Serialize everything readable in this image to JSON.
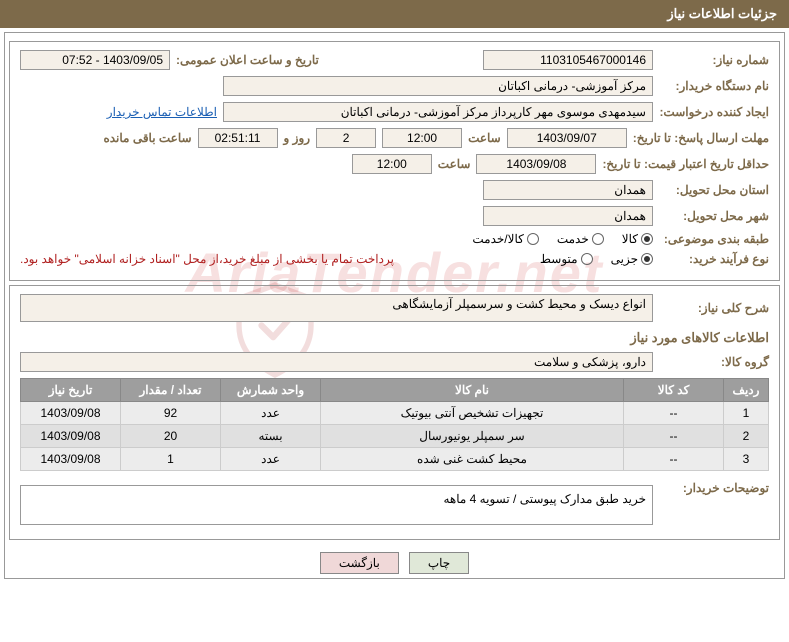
{
  "header": {
    "title": "جزئیات اطلاعات نیاز"
  },
  "form": {
    "need_number_label": "شماره نیاز:",
    "need_number": "1103105467000146",
    "announce_label": "تاریخ و ساعت اعلان عمومی:",
    "announce_value": "1403/09/05 - 07:52",
    "buyer_org_label": "نام دستگاه خریدار:",
    "buyer_org": "مرکز آموزشی- درمانی اکباتان",
    "requester_label": "ایجاد کننده درخواست:",
    "requester": "سیدمهدی موسوی مهر کارپرداز مرکز آموزشی- درمانی اکباتان",
    "contact_link": "اطلاعات تماس خریدار",
    "deadline_response_label": "مهلت ارسال پاسخ: تا تاریخ:",
    "deadline_date": "1403/09/07",
    "time_label": "ساعت",
    "deadline_time": "12:00",
    "days_remaining": "2",
    "days_label": "روز و",
    "time_remaining": "02:51:11",
    "remaining_label": "ساعت باقی مانده",
    "price_validity_label": "حداقل تاریخ اعتبار قیمت: تا تاریخ:",
    "price_validity_date": "1403/09/08",
    "price_validity_time": "12:00",
    "province_label": "استان محل تحویل:",
    "province": "همدان",
    "city_label": "شهر محل تحویل:",
    "city": "همدان",
    "subject_class_label": "طبقه بندی موضوعی:",
    "radio_goods": "کالا",
    "radio_service": "خدمت",
    "radio_goods_service": "کالا/خدمت",
    "purchase_type_label": "نوع فرآیند خرید:",
    "radio_partial": "جزیی",
    "radio_medium": "متوسط",
    "payment_note": "پرداخت تمام یا بخشی از مبلغ خرید،از محل \"اسناد خزانه اسلامی\" خواهد بود.",
    "need_desc_label": "شرح کلی نیاز:",
    "need_desc": "انواع دیسک و محیط کشت و سرسمپلر آزمایشگاهی",
    "goods_info_title": "اطلاعات کالاهای مورد نیاز",
    "goods_group_label": "گروه کالا:",
    "goods_group": "دارو، پزشکی و سلامت",
    "buyer_remarks_label": "توضیحات خریدار:",
    "buyer_remarks": "خرید طبق مدارک پیوستی / تسویه 4 ماهه"
  },
  "table": {
    "columns": [
      "ردیف",
      "کد کالا",
      "نام کالا",
      "واحد شمارش",
      "تعداد / مقدار",
      "تاریخ نیاز"
    ],
    "rows": [
      [
        "1",
        "--",
        "تجهیزات تشخیص آنتی بیوتیک",
        "عدد",
        "92",
        "1403/09/08"
      ],
      [
        "2",
        "--",
        "سر سمپلر یونیورسال",
        "بسته",
        "20",
        "1403/09/08"
      ],
      [
        "3",
        "--",
        "محیط کشت غنی شده",
        "عدد",
        "1",
        "1403/09/08"
      ]
    ],
    "col_widths": [
      "45px",
      "100px",
      "auto",
      "100px",
      "100px",
      "100px"
    ]
  },
  "buttons": {
    "print": "چاپ",
    "back": "بازگشت"
  },
  "colors": {
    "header_bg": "#7d6a4a",
    "label_color": "#7d6a4a",
    "input_bg": "#f5f0e8",
    "link_color": "#1a5fb4",
    "th_bg": "#9e9e9e",
    "td_bg": "#ececec"
  }
}
